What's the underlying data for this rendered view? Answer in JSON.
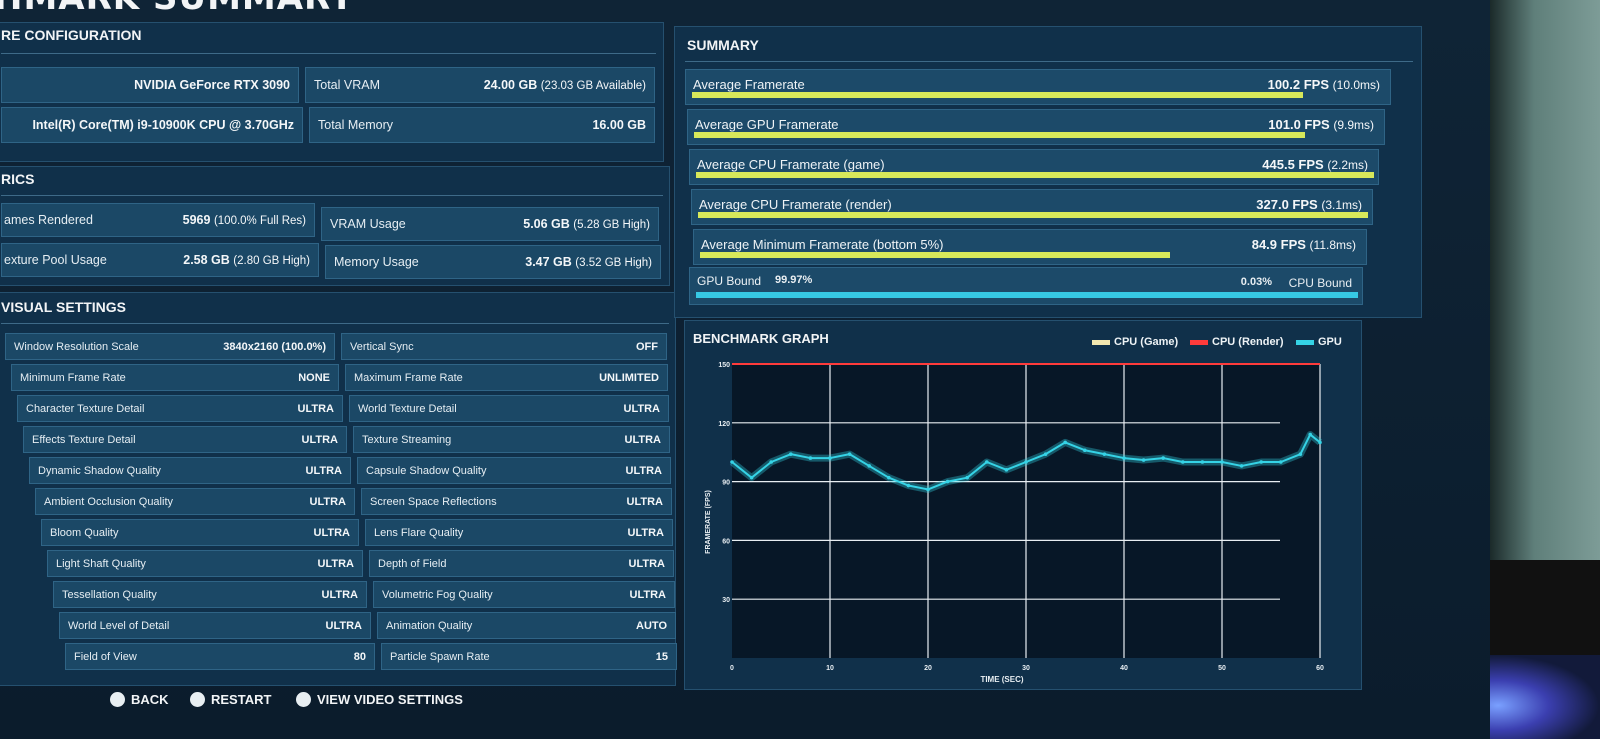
{
  "page_title": "HMARK SUMMARY",
  "hardware": {
    "title": "RE CONFIGURATION",
    "gpu": "NVIDIA GeForce RTX 3090",
    "cpu": "Intel(R) Core(TM) i9-10900K CPU @ 3.70GHz",
    "total_vram_label": "Total VRAM",
    "total_vram_value": "24.00 GB",
    "total_vram_sub": "(23.03 GB Available)",
    "total_memory_label": "Total Memory",
    "total_memory_value": "16.00 GB"
  },
  "metrics": {
    "title": "RICS",
    "frames_rendered_label": "ames Rendered",
    "frames_rendered_value": "5969",
    "frames_rendered_sub": "(100.0% Full Res)",
    "vram_usage_label": "VRAM Usage",
    "vram_usage_value": "5.06 GB",
    "vram_usage_sub": "(5.28 GB High)",
    "texture_pool_label": "exture Pool Usage",
    "texture_pool_value": "2.58 GB",
    "texture_pool_sub": "(2.80 GB High)",
    "memory_usage_label": "Memory Usage",
    "memory_usage_value": "3.47 GB",
    "memory_usage_sub": "(3.52 GB High)"
  },
  "visual_settings": {
    "title": "VISUAL SETTINGS",
    "rows": [
      {
        "l_label": "Window Resolution Scale",
        "l_value": "3840x2160 (100.0%)",
        "r_label": "Vertical Sync",
        "r_value": "OFF"
      },
      {
        "l_label": "Minimum Frame Rate",
        "l_value": "NONE",
        "r_label": "Maximum Frame Rate",
        "r_value": "UNLIMITED"
      },
      {
        "l_label": "Character Texture Detail",
        "l_value": "ULTRA",
        "r_label": "World Texture Detail",
        "r_value": "ULTRA"
      },
      {
        "l_label": "Effects Texture Detail",
        "l_value": "ULTRA",
        "r_label": "Texture Streaming",
        "r_value": "ULTRA"
      },
      {
        "l_label": "Dynamic Shadow Quality",
        "l_value": "ULTRA",
        "r_label": "Capsule Shadow Quality",
        "r_value": "ULTRA"
      },
      {
        "l_label": "Ambient Occlusion Quality",
        "l_value": "ULTRA",
        "r_label": "Screen Space Reflections",
        "r_value": "ULTRA"
      },
      {
        "l_label": "Bloom Quality",
        "l_value": "ULTRA",
        "r_label": "Lens Flare Quality",
        "r_value": "ULTRA"
      },
      {
        "l_label": "Light Shaft Quality",
        "l_value": "ULTRA",
        "r_label": "Depth of Field",
        "r_value": "ULTRA"
      },
      {
        "l_label": "Tessellation Quality",
        "l_value": "ULTRA",
        "r_label": "Volumetric Fog Quality",
        "r_value": "ULTRA"
      },
      {
        "l_label": "World Level of Detail",
        "l_value": "ULTRA",
        "r_label": "Animation Quality",
        "r_value": "AUTO"
      },
      {
        "l_label": "Field of View",
        "l_value": "80",
        "r_label": "Particle Spawn Rate",
        "r_value": "15"
      }
    ]
  },
  "summary": {
    "title": "SUMMARY",
    "rows": [
      {
        "label": "Average Framerate",
        "value": "100.2 FPS",
        "sub": "(10.0ms)",
        "fill": 0.88
      },
      {
        "label": "Average GPU Framerate",
        "value": "101.0 FPS",
        "sub": "(9.9ms)",
        "fill": 0.89
      },
      {
        "label": "Average CPU Framerate (game)",
        "value": "445.5 FPS",
        "sub": "(2.2ms)",
        "fill": 1.0
      },
      {
        "label": "Average CPU Framerate (render)",
        "value": "327.0 FPS",
        "sub": "(3.1ms)",
        "fill": 1.0
      },
      {
        "label": "Average Minimum Framerate (bottom 5%)",
        "value": "84.9 FPS",
        "sub": "(11.8ms)",
        "fill": 0.71
      }
    ],
    "gpu_bound_label": "GPU Bound",
    "gpu_bound_value": "99.97%",
    "cpu_bound_label": "CPU Bound",
    "cpu_bound_value": "0.03%",
    "gpu_bound_fill": 0.9997
  },
  "graph": {
    "title": "BENCHMARK GRAPH",
    "legend": [
      "CPU (Game)",
      "CPU (Render)",
      "GPU"
    ],
    "colors": {
      "cpu_game": "#f3e7b0",
      "cpu_render": "#ff3b3b",
      "gpu": "#35d3e6"
    }
  },
  "chart_data": {
    "type": "scatter",
    "title": "BENCHMARK GRAPH",
    "xlabel": "TIME (SEC)",
    "ylabel": "FRAMERATE (FPS)",
    "xlim": [
      0,
      60
    ],
    "ylim": [
      0,
      150
    ],
    "x_ticks": [
      0,
      10,
      20,
      30,
      40,
      50,
      60
    ],
    "y_ticks": [
      30,
      60,
      90,
      120,
      150
    ],
    "grid": true,
    "legend_position": "top-right",
    "series": [
      {
        "name": "CPU (Render)",
        "x": [
          0,
          60
        ],
        "y": [
          150,
          150
        ]
      },
      {
        "name": "GPU",
        "x": [
          0,
          2,
          4,
          6,
          8,
          10,
          12,
          14,
          16,
          18,
          20,
          22,
          24,
          26,
          28,
          30,
          32,
          34,
          36,
          38,
          40,
          42,
          44,
          46,
          48,
          50,
          52,
          54,
          56,
          58,
          59,
          60
        ],
        "y": [
          100,
          92,
          100,
          104,
          102,
          102,
          104,
          98,
          92,
          88,
          86,
          90,
          92,
          100,
          96,
          100,
          104,
          110,
          106,
          104,
          102,
          101,
          102,
          100,
          100,
          100,
          98,
          100,
          100,
          104,
          114,
          110
        ]
      }
    ]
  },
  "footer": {
    "back": "BACK",
    "restart": "RESTART",
    "view_video": "VIEW VIDEO SETTINGS"
  }
}
